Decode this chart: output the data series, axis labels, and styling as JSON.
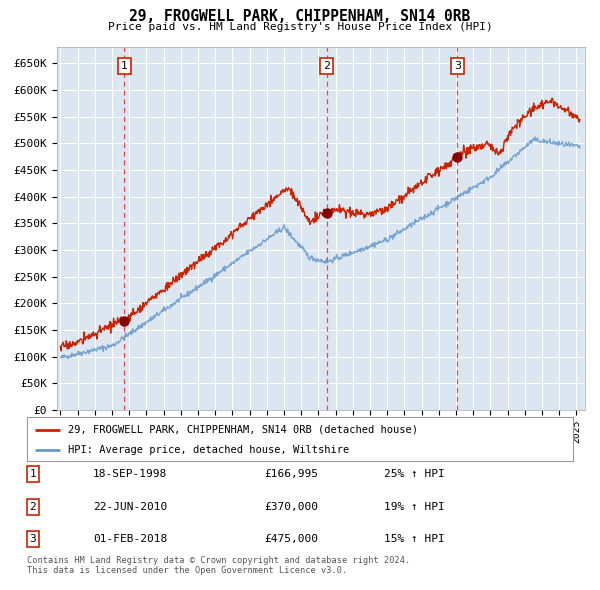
{
  "title": "29, FROGWELL PARK, CHIPPENHAM, SN14 0RB",
  "subtitle": "Price paid vs. HM Land Registry's House Price Index (HPI)",
  "plot_bg_color": "#dce6f1",
  "red_line_color": "#cc2200",
  "blue_line_color": "#6699cc",
  "marker_color": "#880000",
  "dashed_color": "#dd3333",
  "ylabel_ticks": [
    "£0",
    "£50K",
    "£100K",
    "£150K",
    "£200K",
    "£250K",
    "£300K",
    "£350K",
    "£400K",
    "£450K",
    "£500K",
    "£550K",
    "£600K",
    "£650K"
  ],
  "ytick_values": [
    0,
    50000,
    100000,
    150000,
    200000,
    250000,
    300000,
    350000,
    400000,
    450000,
    500000,
    550000,
    600000,
    650000
  ],
  "xstart": 1994.8,
  "xend": 2025.5,
  "transactions": [
    {
      "num": 1,
      "date_num": 1998.72,
      "price": 166995
    },
    {
      "num": 2,
      "date_num": 2010.47,
      "price": 370000
    },
    {
      "num": 3,
      "date_num": 2018.08,
      "price": 475000
    }
  ],
  "legend_red_label": "29, FROGWELL PARK, CHIPPENHAM, SN14 0RB (detached house)",
  "legend_blue_label": "HPI: Average price, detached house, Wiltshire",
  "footnote": "Contains HM Land Registry data © Crown copyright and database right 2024.\nThis data is licensed under the Open Government Licence v3.0.",
  "table_rows": [
    {
      "num": 1,
      "date": "18-SEP-1998",
      "price": "£166,995",
      "pct": "25% ↑ HPI"
    },
    {
      "num": 2,
      "date": "22-JUN-2010",
      "price": "£370,000",
      "pct": "19% ↑ HPI"
    },
    {
      "num": 3,
      "date": "01-FEB-2018",
      "price": "£475,000",
      "pct": "15% ↑ HPI"
    }
  ]
}
